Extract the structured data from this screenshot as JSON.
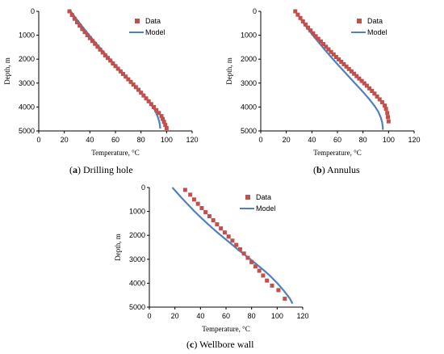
{
  "colors": {
    "data": "#c0504d",
    "model": "#4f81bd",
    "axis": "#000000"
  },
  "captions": [
    {
      "letter": "a",
      "text": "Drilling hole"
    },
    {
      "letter": "b",
      "text": "Annulus"
    },
    {
      "letter": "c",
      "text": "Wellbore wall"
    }
  ],
  "chart_data": [
    {
      "type": "scatter",
      "xlabel": "Temperature, °C",
      "ylabel": "Depth, m",
      "xlim": [
        0,
        120
      ],
      "ylim": [
        0,
        5000
      ],
      "y_inverted": true,
      "x_ticks": [
        0,
        20,
        40,
        60,
        80,
        100,
        120
      ],
      "y_ticks": [
        0,
        1000,
        2000,
        3000,
        4000,
        5000
      ],
      "legend": "top-right",
      "series": [
        {
          "name": "Data",
          "kind": "markers",
          "x": [
            24,
            26,
            28,
            30,
            32,
            34,
            36,
            38,
            40,
            42,
            44,
            46,
            48,
            50,
            52,
            54,
            56,
            58,
            60,
            62,
            64,
            66,
            68,
            70,
            72,
            74,
            76,
            78,
            80,
            82,
            84,
            86,
            88,
            90,
            92,
            94,
            96,
            97,
            98,
            99,
            100
          ],
          "y": [
            0,
            150,
            310,
            460,
            600,
            740,
            870,
            1000,
            1120,
            1240,
            1360,
            1480,
            1600,
            1720,
            1840,
            1950,
            2060,
            2180,
            2290,
            2400,
            2510,
            2620,
            2730,
            2840,
            2950,
            3060,
            3170,
            3280,
            3400,
            3520,
            3640,
            3760,
            3880,
            4000,
            4130,
            4250,
            4380,
            4500,
            4620,
            4750,
            4880
          ]
        },
        {
          "name": "Model",
          "kind": "line",
          "x": [
            25,
            30,
            35,
            40,
            45,
            50,
            55,
            60,
            65,
            70,
            75,
            80,
            85,
            88,
            91,
            93,
            94.5,
            95,
            95
          ],
          "y": [
            0,
            350,
            700,
            1030,
            1350,
            1660,
            1960,
            2250,
            2540,
            2820,
            3100,
            3380,
            3680,
            3900,
            4150,
            4400,
            4650,
            4850,
            4900
          ]
        }
      ]
    },
    {
      "type": "scatter",
      "xlabel": "Temperature, °C",
      "ylabel": "Depth, m",
      "xlim": [
        0,
        120
      ],
      "ylim": [
        0,
        5000
      ],
      "y_inverted": true,
      "x_ticks": [
        0,
        20,
        40,
        60,
        80,
        100,
        120
      ],
      "y_ticks": [
        0,
        1000,
        2000,
        3000,
        4000,
        5000
      ],
      "legend": "top-right",
      "series": [
        {
          "name": "Data",
          "kind": "markers",
          "x": [
            27,
            29,
            31,
            33,
            35,
            37,
            39,
            41,
            43,
            45,
            47,
            49,
            51,
            53,
            55,
            57,
            59,
            61,
            63,
            65,
            67,
            69,
            71,
            73,
            75,
            77,
            79,
            81,
            83,
            85,
            87,
            89,
            91,
            93,
            95,
            97,
            98,
            99,
            99.5,
            100
          ],
          "y": [
            0,
            140,
            280,
            420,
            550,
            680,
            800,
            920,
            1040,
            1150,
            1260,
            1370,
            1480,
            1590,
            1700,
            1800,
            1910,
            2010,
            2110,
            2210,
            2310,
            2410,
            2510,
            2610,
            2710,
            2810,
            2910,
            3010,
            3110,
            3220,
            3330,
            3440,
            3560,
            3680,
            3800,
            3940,
            4080,
            4250,
            4420,
            4600
          ]
        },
        {
          "name": "Model",
          "kind": "line",
          "x": [
            27,
            30,
            35,
            40,
            45,
            50,
            55,
            60,
            65,
            70,
            75,
            80,
            85,
            89,
            92,
            94,
            95,
            95.5,
            95.5
          ],
          "y": [
            0,
            230,
            600,
            950,
            1280,
            1600,
            1910,
            2210,
            2500,
            2790,
            3080,
            3370,
            3680,
            3950,
            4200,
            4450,
            4650,
            4850,
            4950
          ]
        }
      ]
    },
    {
      "type": "scatter",
      "xlabel": "Temperature, °C",
      "ylabel": "Depth, m",
      "xlim": [
        0,
        120
      ],
      "ylim": [
        0,
        5000
      ],
      "y_inverted": true,
      "x_ticks": [
        0,
        20,
        40,
        60,
        80,
        100,
        120
      ],
      "y_ticks": [
        0,
        1000,
        2000,
        3000,
        4000,
        5000
      ],
      "legend": "top-right",
      "series": [
        {
          "name": "Data",
          "kind": "markers",
          "x": [
            28,
            32,
            35,
            38,
            41,
            44,
            47,
            50,
            53,
            56,
            59,
            62,
            65,
            68,
            71,
            74,
            77,
            80,
            83,
            86,
            89,
            92,
            96,
            101,
            106
          ],
          "y": [
            100,
            300,
            500,
            680,
            860,
            1030,
            1200,
            1370,
            1540,
            1710,
            1880,
            2050,
            2220,
            2400,
            2580,
            2760,
            2940,
            3120,
            3300,
            3480,
            3680,
            3890,
            4100,
            4290,
            4650
          ]
        },
        {
          "name": "Model",
          "kind": "line",
          "x": [
            18,
            25,
            30,
            35,
            40,
            45,
            50,
            55,
            60,
            65,
            70,
            75,
            80,
            85,
            90,
            95,
            100,
            105,
            110,
            112
          ],
          "y": [
            0,
            420,
            700,
            980,
            1240,
            1490,
            1730,
            1960,
            2180,
            2400,
            2620,
            2830,
            3040,
            3260,
            3480,
            3720,
            3990,
            4300,
            4650,
            4850
          ]
        }
      ]
    }
  ]
}
